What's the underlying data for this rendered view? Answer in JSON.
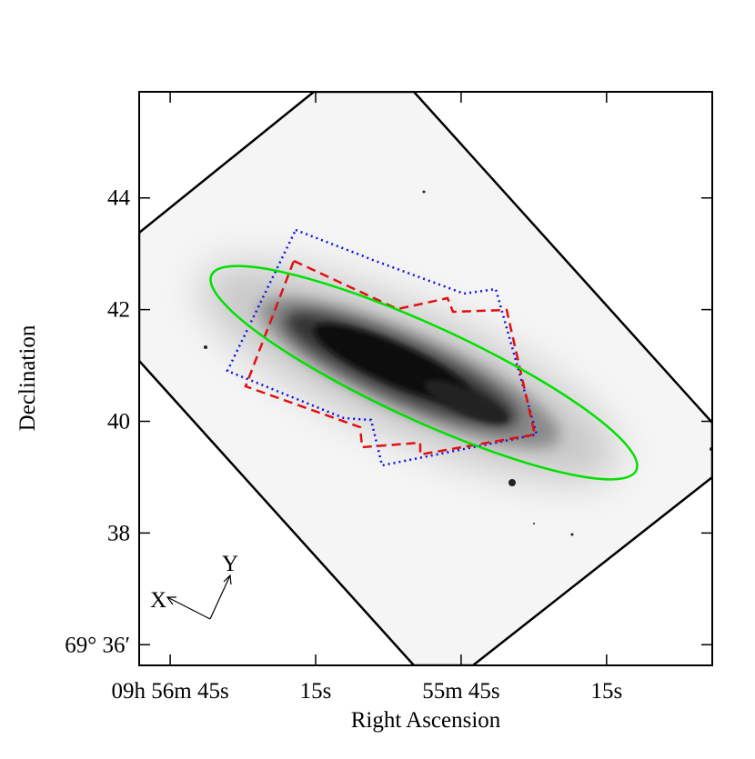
{
  "chart_data": {
    "type": "sky-image",
    "xlabel": "Right Ascension",
    "ylabel": "Declination",
    "xlim": [
      111.4,
      -6.8
    ],
    "xticks": [
      {
        "value": 105,
        "label": "09h 56m 45s"
      },
      {
        "value": 75,
        "label": "15s"
      },
      {
        "value": 45,
        "label": "55m 45s"
      },
      {
        "value": 15,
        "label": "15s"
      }
    ],
    "ylim": [
      35.63,
      45.9
    ],
    "yticks": [
      {
        "value": 36,
        "label": "69° 36′"
      },
      38,
      40,
      42,
      44
    ],
    "compass": [
      "X",
      "Y"
    ]
  }
}
